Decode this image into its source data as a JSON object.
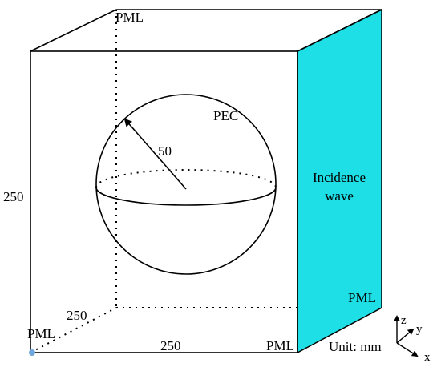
{
  "labels": {
    "pml_top": "PML",
    "pml_right": "PML",
    "pml_bottom_right": "PML",
    "pml_bottom_left": "PML",
    "pec": "PEC",
    "radius": "50",
    "height": "250",
    "depth": "250",
    "width": "250",
    "incidence_line1": "Incidence",
    "incidence_line2": "wave",
    "unit": "Unit: mm"
  },
  "axes": {
    "x": "x",
    "y": "y",
    "z": "z"
  },
  "colors": {
    "incidence_face": "#1fdfe6",
    "line": "#000000",
    "origin_dot": "#6fa8dc"
  }
}
